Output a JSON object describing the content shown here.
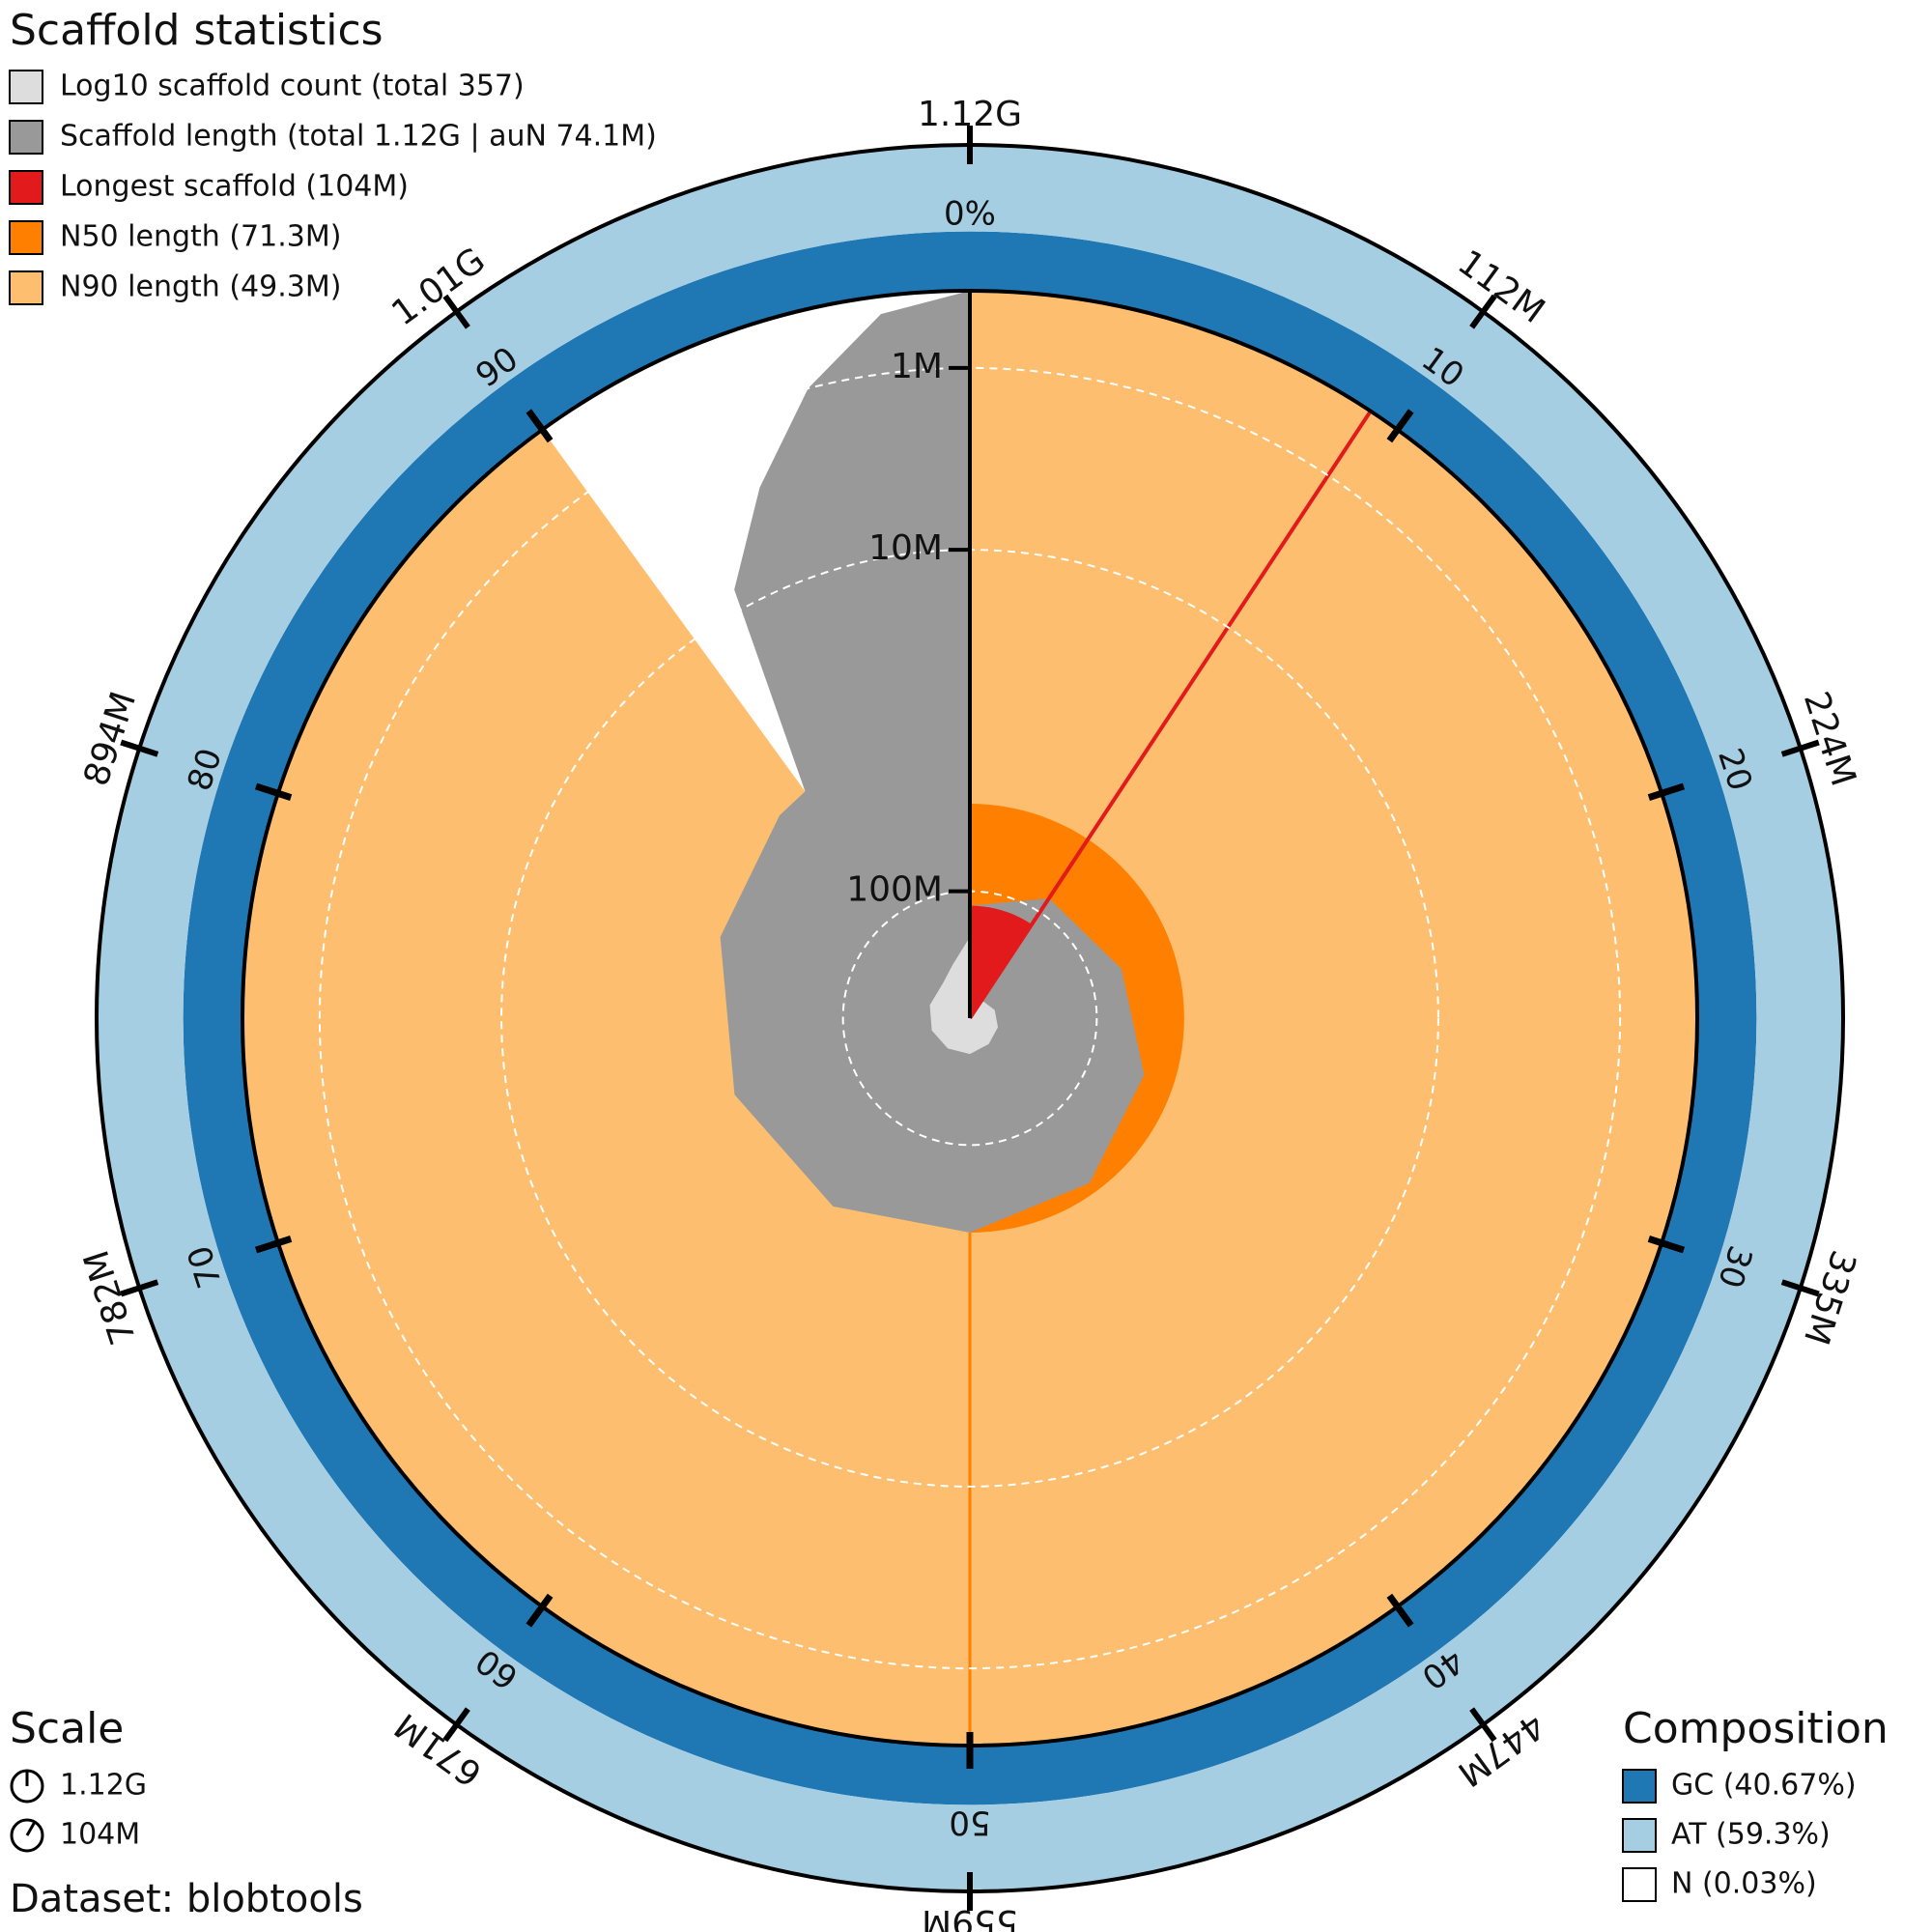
{
  "chart_data": {
    "type": "snail",
    "title": "Scaffold statistics",
    "legend": [
      {
        "label": "Log10 scaffold count (total 357)",
        "color": "#dddddd"
      },
      {
        "label": "Scaffold length (total 1.12G | auN 74.1M)",
        "color": "#999999"
      },
      {
        "label": "Longest scaffold (104M)",
        "color": "#e31a1c"
      },
      {
        "label": "N50 length (71.3M)",
        "color": "#ff7f00"
      },
      {
        "label": "N90 length (49.3M)",
        "color": "#fdbf6f"
      }
    ],
    "total_length": 1120000000,
    "scaffold_count": 357,
    "longest": 104000000,
    "n50": 71300000,
    "n90": 49300000,
    "xlim": [
      0,
      100
    ],
    "xticks": [
      {
        "value": 0,
        "label": "1.12G"
      },
      {
        "value": 10,
        "label": "112M"
      },
      {
        "value": 20,
        "label": "224M"
      },
      {
        "value": 30,
        "label": "335M"
      },
      {
        "value": 40,
        "label": "447M"
      },
      {
        "value": 50,
        "label": "559M"
      },
      {
        "value": 60,
        "label": "671M"
      },
      {
        "value": 70,
        "label": "782M"
      },
      {
        "value": 80,
        "label": "894M"
      },
      {
        "value": 90,
        "label": "1.01G"
      }
    ],
    "inner_ticks": [
      {
        "value": 0,
        "label": "0%"
      },
      10,
      20,
      30,
      40,
      50,
      60,
      70,
      80,
      90
    ],
    "rlim": [
      120000000,
      300000
    ],
    "log_scale": true,
    "rticks": [
      {
        "value": 1000000,
        "label": "1M"
      },
      {
        "value": 10000000,
        "label": "10M"
      },
      {
        "value": 100000000,
        "label": "100M"
      }
    ],
    "length_curve": {
      "color": "#999999",
      "x": [
        0,
        9.3,
        20,
        30,
        40,
        50,
        60,
        70,
        80,
        88,
        90,
        92,
        94,
        96,
        98,
        100
      ],
      "values": [
        104000000,
        95000000,
        90000000,
        82000000,
        75000000,
        71300000,
        65000000,
        60000000,
        55000000,
        50000000,
        49300000,
        8000000,
        3000000,
        1000000,
        400000,
        300000
      ]
    },
    "count_curve": {
      "color": "#dddddd",
      "x": [
        0,
        10,
        20,
        30,
        40,
        50,
        60,
        70,
        80,
        90,
        95,
        100
      ],
      "values": [
        1,
        2,
        3,
        4,
        5,
        7,
        8,
        10,
        12,
        15,
        40,
        357
      ]
    },
    "composition": {
      "title": "Composition",
      "items": [
        {
          "label": "GC (40.67%)",
          "value": 40.67,
          "color": "#1f78b4"
        },
        {
          "label": "AT (59.3%)",
          "value": 59.3,
          "color": "#a6cee3"
        },
        {
          "label": "N (0.03%)",
          "value": 0.03,
          "color": "#ffffff"
        }
      ]
    },
    "scale": {
      "title": "Scale",
      "items": [
        "1.12G",
        "104M"
      ]
    },
    "dataset": "Dataset: blobtools"
  }
}
